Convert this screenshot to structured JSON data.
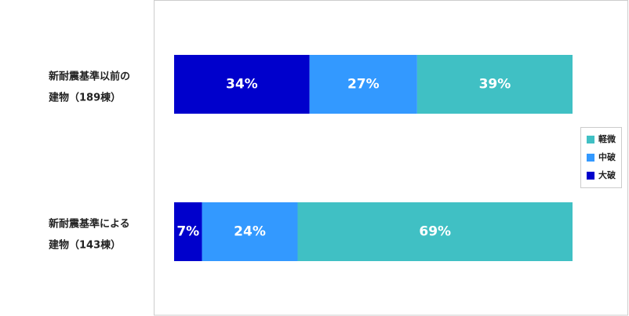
{
  "chart_data": {
    "type": "stacked-bar-100",
    "categories": [
      [
        "新耐震基準以前の",
        "建物（189棟）"
      ],
      [
        "新耐震基準による",
        "建物（143棟）"
      ]
    ],
    "series": [
      {
        "name": "大破",
        "color": "#0000cc",
        "values": [
          34,
          7
        ],
        "value_labels": [
          "34%",
          "7%"
        ]
      },
      {
        "name": "中破",
        "color": "#3399ff",
        "values": [
          27,
          24
        ],
        "value_labels": [
          "27%",
          "24%"
        ]
      },
      {
        "name": "軽微",
        "color": "#40c0c4",
        "values": [
          39,
          69
        ],
        "value_labels": [
          "39%",
          "69%"
        ]
      }
    ],
    "legend": "right"
  }
}
